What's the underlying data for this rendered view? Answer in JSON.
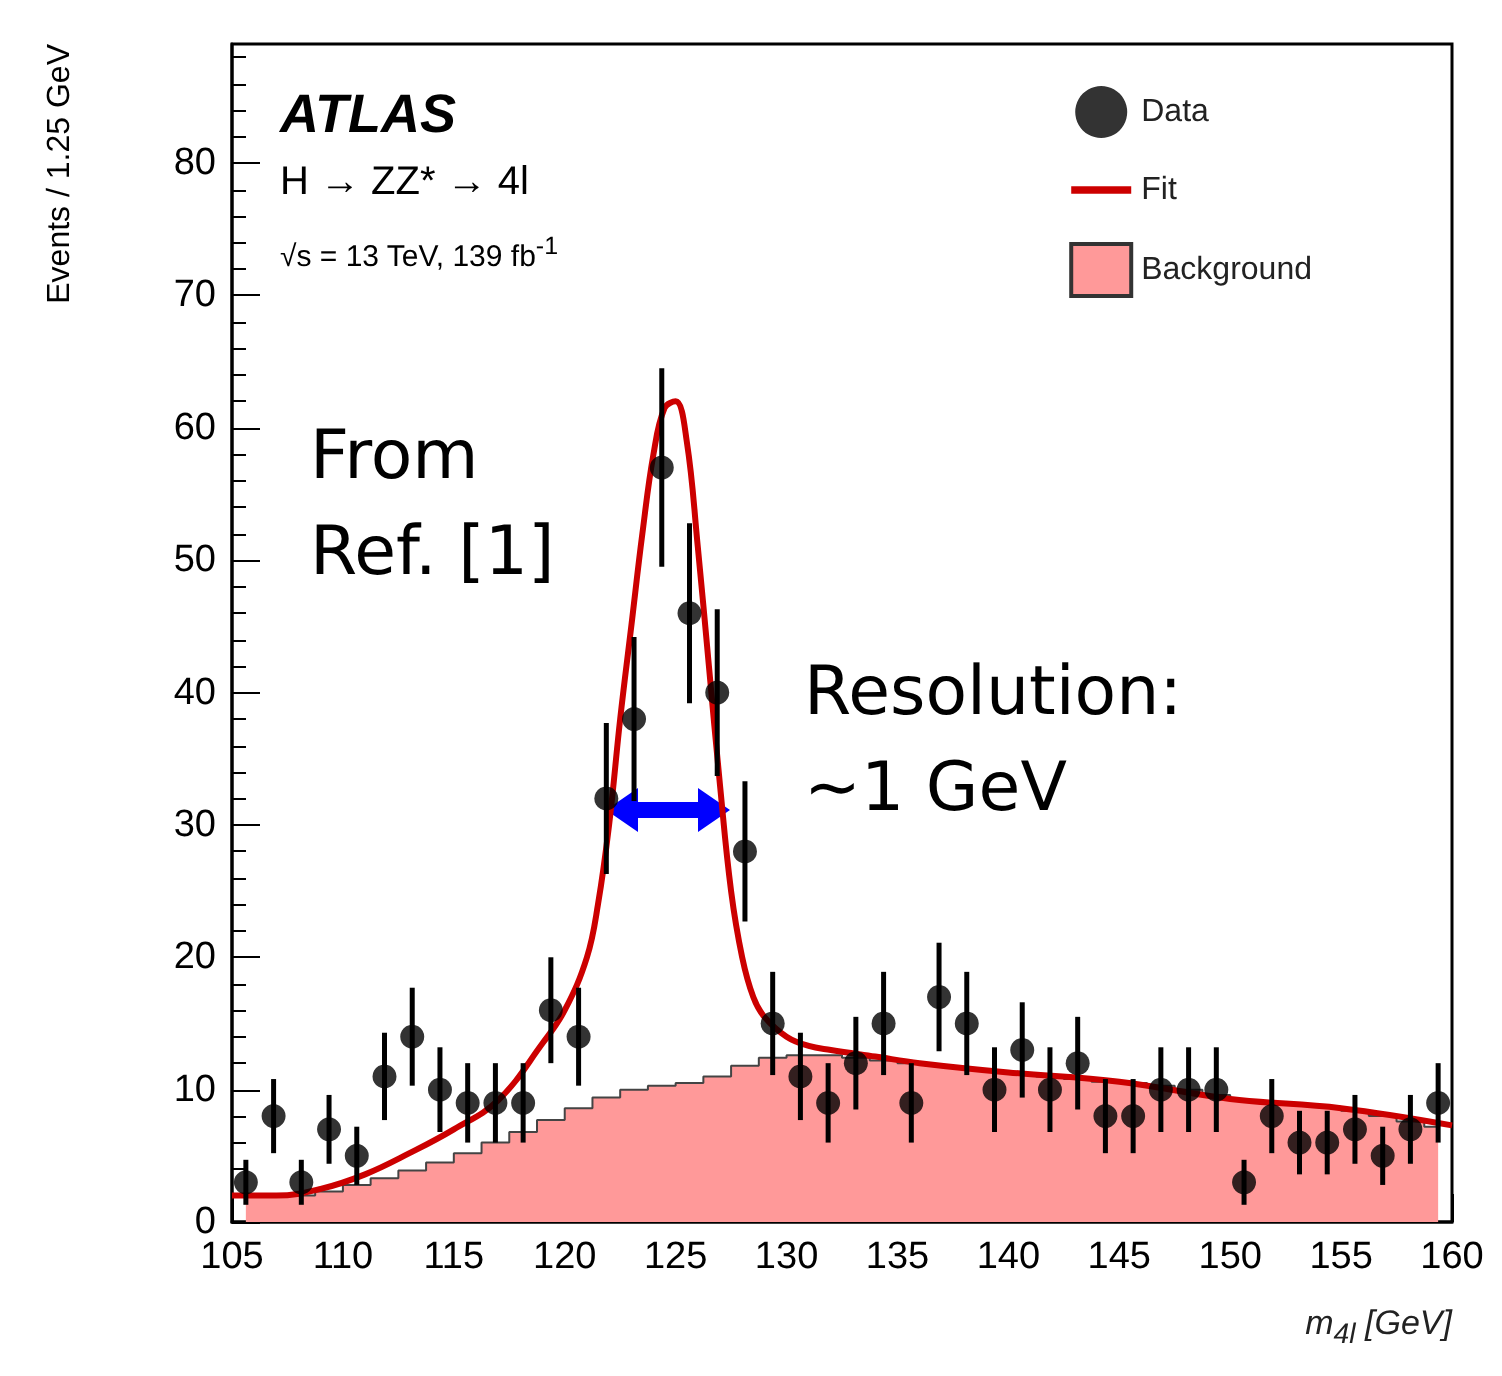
{
  "chart_data": {
    "type": "scatter",
    "xlabel": "m$_{4l}$ [GeV]",
    "ylabel": "Events / 1.25 GeV",
    "annotations": [
      "ATLAS",
      "H → ZZ* → 4l",
      "√s = 13 TeV, 139 fb$^{-1}$",
      "From Ref. [1]",
      "Resolution: ~1 GeV"
    ],
    "xlim": [
      105,
      160
    ],
    "xticks": [
      105,
      110,
      115,
      120,
      125,
      130,
      135,
      140,
      145,
      150,
      155,
      160
    ],
    "ylim": [
      0,
      89
    ],
    "yticks": [
      0,
      10,
      20,
      30,
      40,
      50,
      60,
      70,
      80
    ],
    "legend": "top right",
    "grid": false,
    "series": [
      {
        "name": "Data",
        "color": "#000000",
        "x": [
          105.625,
          106.875,
          108.125,
          109.375,
          110.625,
          111.875,
          113.125,
          114.375,
          115.625,
          116.875,
          118.125,
          119.375,
          120.625,
          121.875,
          123.125,
          124.375,
          125.625,
          126.875,
          128.125,
          129.375,
          130.625,
          131.875,
          133.125,
          134.375,
          135.625,
          136.875,
          138.125,
          139.375,
          140.625,
          141.875,
          143.125,
          144.375,
          145.625,
          146.875,
          148.125,
          149.375,
          150.625,
          151.875,
          153.125,
          154.375,
          155.625,
          156.875,
          158.125,
          159.375
        ],
        "values": [
          3,
          8,
          3,
          7,
          5,
          11,
          14,
          10,
          9,
          9,
          9,
          16,
          14,
          32,
          38,
          57,
          46,
          40,
          28,
          15,
          11,
          9,
          12,
          15,
          9,
          17,
          15,
          10,
          13,
          10,
          12,
          8,
          8,
          10,
          10,
          10,
          3,
          8,
          6,
          6,
          7,
          5,
          7,
          9
        ],
        "errors": [
          1.7,
          2.8,
          1.7,
          2.6,
          2.2,
          3.3,
          3.7,
          3.2,
          3,
          3,
          3,
          4,
          3.7,
          5.7,
          6.2,
          7.5,
          6.8,
          6.3,
          5.3,
          3.9,
          3.3,
          3,
          3.5,
          3.9,
          3,
          4.1,
          3.9,
          3.2,
          3.6,
          3.2,
          3.5,
          2.8,
          2.8,
          3.2,
          3.2,
          3.2,
          1.7,
          2.8,
          2.4,
          2.4,
          2.6,
          2.2,
          2.6,
          3
        ]
      },
      {
        "name": "Fit",
        "type": "line",
        "color": "#cc0000",
        "x": [
          105,
          107,
          109,
          111,
          113,
          115,
          117,
          119,
          120,
          121,
          121.5,
          122,
          122.5,
          123,
          123.5,
          124,
          124.5,
          125,
          125.5,
          126,
          126.5,
          127,
          127.5,
          128,
          128.5,
          129,
          130,
          131,
          132,
          134,
          136,
          140,
          145,
          150,
          155,
          160
        ],
        "values": [
          2,
          2,
          2.5,
          3.6,
          5.2,
          7,
          9.2,
          13.5,
          16,
          20,
          24,
          30,
          38,
          45,
          52,
          58,
          61.5,
          62,
          59,
          51,
          42,
          33,
          25,
          20,
          17,
          15.5,
          14,
          13.3,
          13,
          12.5,
          12,
          11.3,
          10.6,
          9.3,
          8.6,
          7.3
        ]
      },
      {
        "name": "Background",
        "type": "area",
        "color": "#ff9999",
        "x": [
          105.625,
          106.875,
          108.125,
          109.375,
          110.625,
          111.875,
          113.125,
          114.375,
          115.625,
          116.875,
          118.125,
          119.375,
          120.625,
          121.875,
          123.125,
          124.375,
          125.625,
          126.875,
          128.125,
          129.375,
          130.625,
          131.875,
          133.125,
          134.375,
          135.625,
          136.875,
          138.125,
          139.375,
          140.625,
          141.875,
          143.125,
          144.375,
          145.625,
          146.875,
          148.125,
          149.375,
          150.625,
          151.875,
          153.125,
          154.375,
          155.625,
          156.875,
          158.125,
          159.375
        ],
        "values": [
          2,
          2,
          2,
          2.3,
          2.8,
          3.3,
          3.9,
          4.5,
          5.2,
          6,
          6.8,
          7.7,
          8.6,
          9.4,
          10,
          10.3,
          10.5,
          11,
          11.8,
          12.4,
          12.6,
          12.6,
          12.4,
          12.2,
          12,
          11.8,
          11.6,
          11.4,
          11.2,
          11,
          10.8,
          10.6,
          10.5,
          10.3,
          10,
          9.6,
          9.2,
          9,
          8.9,
          8.7,
          8.4,
          8,
          7.6,
          7.2
        ]
      }
    ]
  }
}
